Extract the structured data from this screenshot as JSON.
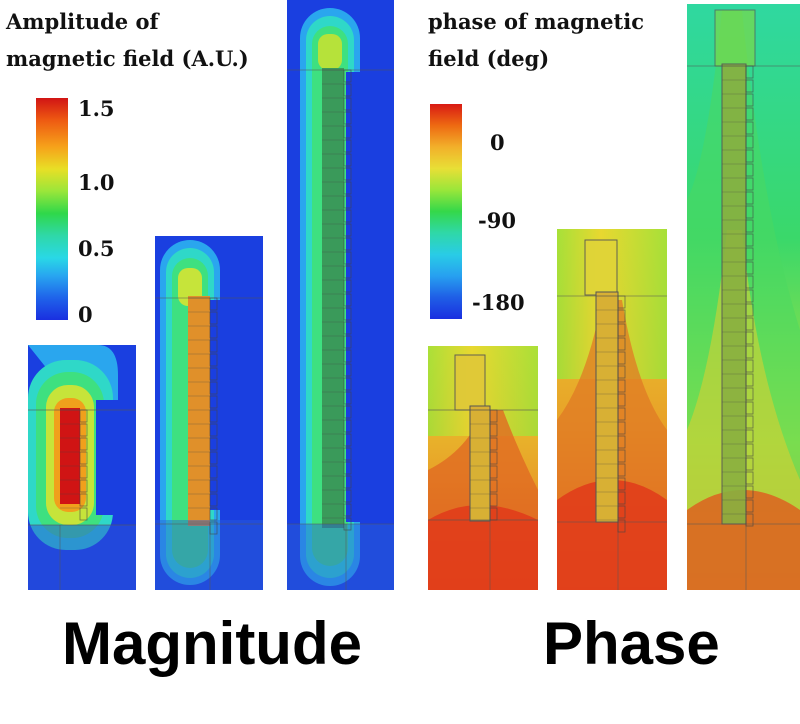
{
  "magnitude_panel": {
    "title_line1": "Amplitude of",
    "title_line2": "magnetic field (A.U.)",
    "colorbar_ticks": [
      "1.5",
      "1.0",
      "0.5",
      "0"
    ],
    "label": "Magnitude"
  },
  "phase_panel": {
    "title_line1": "phase of magnetic",
    "title_line2": "field (deg)",
    "colorbar_ticks": [
      "0",
      "-90",
      "-180"
    ],
    "label": "Phase"
  },
  "colors": {
    "low": "#1a2fe0",
    "mid": "#2fd84a",
    "high": "#e01818"
  }
}
